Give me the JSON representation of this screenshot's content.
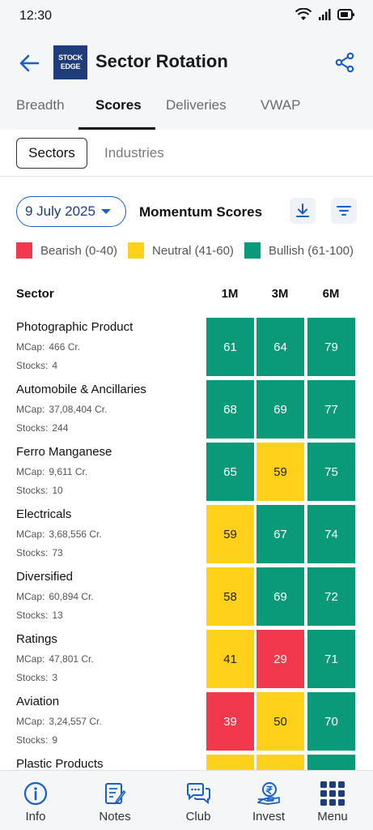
{
  "status_bar": {
    "time": "12:30"
  },
  "header": {
    "logo_line1": "STOCK",
    "logo_line2": "EDGE",
    "title": "Sector Rotation"
  },
  "tabs": [
    {
      "label": "Breadth",
      "active": false
    },
    {
      "label": "Scores",
      "active": true
    },
    {
      "label": "Deliveries",
      "active": false
    },
    {
      "label": "VWAP",
      "active": false
    }
  ],
  "subtabs": {
    "sectors": "Sectors",
    "industries": "Industries"
  },
  "controls": {
    "date": "9 July 2025",
    "title": "Momentum Scores"
  },
  "legend": {
    "bearish": {
      "label": "Bearish (0-40)",
      "color": "#f2384d"
    },
    "neutral": {
      "label": "Neutral (41-60)",
      "color": "#ffd11a"
    },
    "bullish": {
      "label": "Bullish (61-100)",
      "color": "#0a9a7a"
    }
  },
  "table": {
    "headers": {
      "sector": "Sector",
      "m1": "1M",
      "m3": "3M",
      "m6": "6M"
    },
    "mcap_label": "MCap:",
    "stocks_label": "Stocks:",
    "rows": [
      {
        "name": "Photographic Product",
        "mcap": "466 Cr.",
        "stocks": "4",
        "scores": [
          61,
          64,
          79
        ]
      },
      {
        "name": "Automobile & Ancillaries",
        "mcap": "37,08,404 Cr.",
        "stocks": "244",
        "scores": [
          68,
          69,
          77
        ]
      },
      {
        "name": "Ferro Manganese",
        "mcap": "9,611 Cr.",
        "stocks": "10",
        "scores": [
          65,
          59,
          75
        ]
      },
      {
        "name": "Electricals",
        "mcap": "3,68,556 Cr.",
        "stocks": "73",
        "scores": [
          59,
          67,
          74
        ]
      },
      {
        "name": "Diversified",
        "mcap": "60,894 Cr.",
        "stocks": "13",
        "scores": [
          58,
          69,
          72
        ]
      },
      {
        "name": "Ratings",
        "mcap": "47,801 Cr.",
        "stocks": "3",
        "scores": [
          41,
          29,
          71
        ]
      },
      {
        "name": "Aviation",
        "mcap": "3,24,557 Cr.",
        "stocks": "9",
        "scores": [
          39,
          50,
          70
        ]
      },
      {
        "name": "Plastic Products",
        "mcap": "",
        "stocks": "",
        "scores": [
          null,
          null,
          null
        ],
        "cell_tones": [
          "neut",
          "neut",
          "bull"
        ]
      }
    ]
  },
  "bottom_nav": [
    {
      "label": "Info",
      "icon": "info-icon"
    },
    {
      "label": "Notes",
      "icon": "notes-icon"
    },
    {
      "label": "Club",
      "icon": "chat-icon"
    },
    {
      "label": "Invest",
      "icon": "rupee-hand-icon"
    },
    {
      "label": "Menu",
      "icon": "grid-menu-icon"
    }
  ]
}
